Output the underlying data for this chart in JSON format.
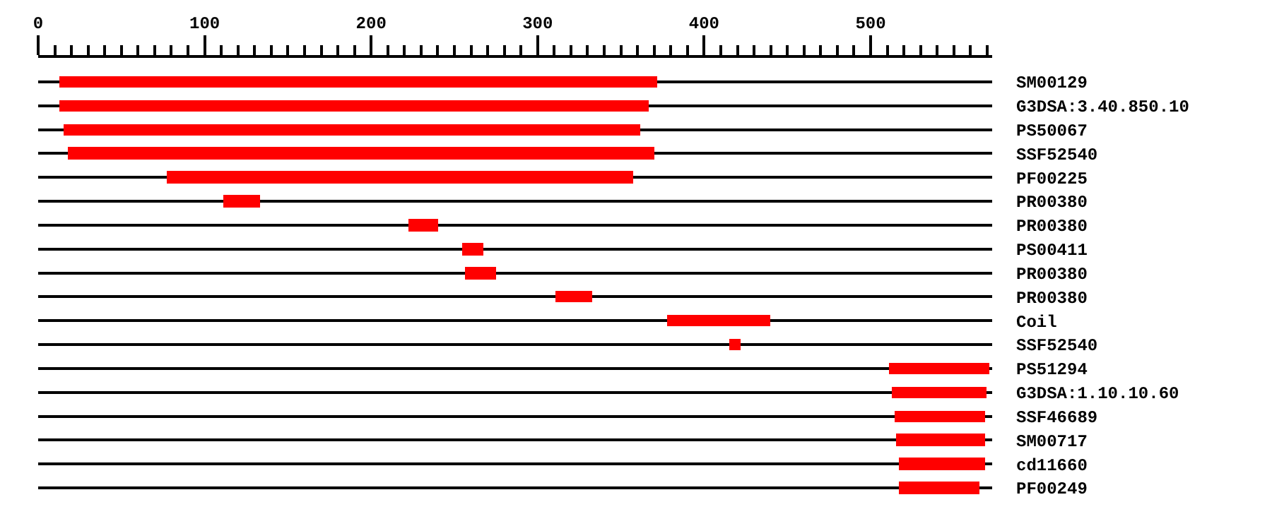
{
  "chart_data": {
    "type": "bar",
    "orientation": "horizontal",
    "categories": [
      "SM00129",
      "G3DSA:3.40.850.10",
      "PS50067",
      "SSF52540",
      "PF00225",
      "PR00380",
      "PR00380",
      "PS00411",
      "PR00380",
      "PR00380",
      "Coil",
      "SSF52540",
      "PS51294",
      "G3DSA:1.10.10.60",
      "SSF46689",
      "SM00717",
      "cd11660",
      "PF00249"
    ],
    "base": [
      13,
      13,
      15,
      18,
      77,
      111,
      222,
      255,
      256,
      311,
      378,
      415,
      511,
      513,
      514,
      515,
      517,
      517
    ],
    "values": [
      359,
      354,
      347,
      352,
      280,
      22,
      18,
      12,
      19,
      22,
      62,
      7,
      60,
      57,
      55,
      54,
      52,
      48
    ],
    "color": "#ff0000",
    "xlim": [
      0,
      573
    ],
    "xticks": [
      0,
      100,
      200,
      300,
      400,
      500,
      {
        "value": 10,
        "label": null
      },
      {
        "value": 20,
        "label": null
      },
      {
        "value": 30,
        "label": null
      },
      {
        "value": 40,
        "label": null
      },
      {
        "value": 50,
        "label": null
      },
      {
        "value": 60,
        "label": null
      },
      {
        "value": 70,
        "label": null
      },
      {
        "value": 80,
        "label": null
      },
      {
        "value": 90,
        "label": null
      },
      {
        "value": 110,
        "label": null
      },
      {
        "value": 120,
        "label": null
      },
      {
        "value": 130,
        "label": null
      },
      {
        "value": 140,
        "label": null
      },
      {
        "value": 150,
        "label": null
      },
      {
        "value": 160,
        "label": null
      },
      {
        "value": 170,
        "label": null
      },
      {
        "value": 180,
        "label": null
      },
      {
        "value": 190,
        "label": null
      },
      {
        "value": 210,
        "label": null
      },
      {
        "value": 220,
        "label": null
      },
      {
        "value": 230,
        "label": null
      },
      {
        "value": 240,
        "label": null
      },
      {
        "value": 250,
        "label": null
      },
      {
        "value": 260,
        "label": null
      },
      {
        "value": 270,
        "label": null
      },
      {
        "value": 280,
        "label": null
      },
      {
        "value": 290,
        "label": null
      },
      {
        "value": 310,
        "label": null
      },
      {
        "value": 320,
        "label": null
      },
      {
        "value": 330,
        "label": null
      },
      {
        "value": 340,
        "label": null
      },
      {
        "value": 350,
        "label": null
      },
      {
        "value": 360,
        "label": null
      },
      {
        "value": 370,
        "label": null
      },
      {
        "value": 380,
        "label": null
      },
      {
        "value": 390,
        "label": null
      },
      {
        "value": 410,
        "label": null
      },
      {
        "value": 420,
        "label": null
      },
      {
        "value": 430,
        "label": null
      },
      {
        "value": 440,
        "label": null
      },
      {
        "value": 450,
        "label": null
      },
      {
        "value": 460,
        "label": null
      },
      {
        "value": 470,
        "label": null
      },
      {
        "value": 480,
        "label": null
      },
      {
        "value": 490,
        "label": null
      },
      {
        "value": 510,
        "label": null
      },
      {
        "value": 520,
        "label": null
      },
      {
        "value": 530,
        "label": null
      },
      {
        "value": 540,
        "label": null
      },
      {
        "value": 550,
        "label": null
      },
      {
        "value": 560,
        "label": null
      },
      {
        "value": 570,
        "label": null
      }
    ],
    "grid": "y"
  }
}
